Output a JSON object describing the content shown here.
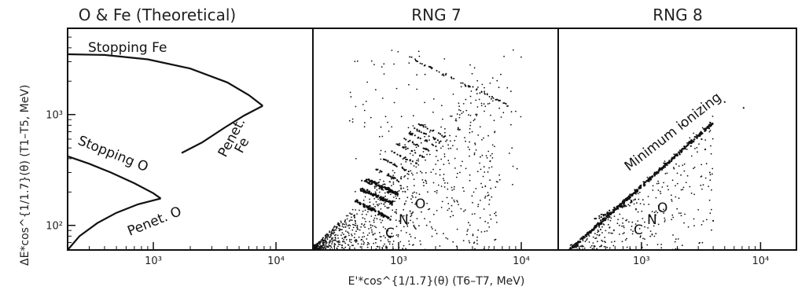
{
  "figure": {
    "xlabel": "E'*cos^{1/1.7}(θ) (T6–T7, MeV)",
    "ylabel": "ΔE*cos^{1/1.7}(θ) (T1–T5, MeV)"
  },
  "chart_data": [
    {
      "type": "line",
      "title": "O & Fe (Theoretical)",
      "xscale": "log",
      "yscale": "log",
      "xlim": [
        200,
        20000
      ],
      "ylim": [
        60,
        6000
      ],
      "xticks": [
        {
          "value": 1000,
          "label": "10³"
        },
        {
          "value": 10000,
          "label": "10⁴"
        }
      ],
      "yticks": [
        {
          "value": 100,
          "label": "10²"
        },
        {
          "value": 1000,
          "label": "10³"
        }
      ],
      "series": [
        {
          "name": "Stopping Fe",
          "x": [
            200,
            400,
            900,
            2000,
            4000,
            6000,
            7800
          ],
          "y": [
            3500,
            3450,
            3150,
            2600,
            1950,
            1500,
            1200
          ]
        },
        {
          "name": "Penet. Fe",
          "x": [
            1700,
            2500,
            3800,
            5500,
            7800
          ],
          "y": [
            450,
            560,
            760,
            980,
            1200
          ]
        },
        {
          "name": "Stopping O",
          "x": [
            200,
            300,
            450,
            700,
            1000,
            1150
          ],
          "y": [
            420,
            360,
            300,
            240,
            195,
            175
          ]
        },
        {
          "name": "Penet. O",
          "x": [
            200,
            250,
            350,
            500,
            750,
            1150
          ],
          "y": [
            60,
            80,
            105,
            130,
            155,
            175
          ]
        }
      ]
    },
    {
      "type": "scatter",
      "title": "RNG 7",
      "xscale": "log",
      "yscale": "log",
      "xlim": [
        200,
        20000
      ],
      "ylim": [
        60,
        6000
      ],
      "xticks": [
        {
          "value": 1000,
          "label": "10³"
        },
        {
          "value": 10000,
          "label": "10⁴"
        }
      ],
      "annotations": [
        "C",
        "N",
        "O"
      ],
      "series": [
        {
          "name": "C",
          "x": [
            450,
            550,
            650,
            750,
            850
          ],
          "y": [
            165,
            150,
            135,
            125,
            115
          ]
        },
        {
          "name": "N",
          "x": [
            500,
            600,
            700,
            800,
            900
          ],
          "y": [
            210,
            195,
            180,
            168,
            158
          ]
        },
        {
          "name": "O",
          "x": [
            550,
            650,
            750,
            850,
            1000
          ],
          "y": [
            260,
            240,
            220,
            205,
            190
          ]
        }
      ]
    },
    {
      "type": "scatter",
      "title": "RNG 8",
      "xscale": "log",
      "yscale": "log",
      "xlim": [
        200,
        20000
      ],
      "ylim": [
        60,
        6000
      ],
      "xticks": [
        {
          "value": 1000,
          "label": "10³"
        },
        {
          "value": 10000,
          "label": "10⁴"
        }
      ],
      "annotations": [
        "Minimum ionizing",
        "C",
        "N",
        "O"
      ],
      "series": [
        {
          "name": "Minimum ionizing",
          "x": [
            250,
            400,
            700,
            1200,
            2000,
            3000,
            4000
          ],
          "y": [
            60,
            100,
            170,
            290,
            450,
            650,
            850
          ]
        }
      ]
    }
  ]
}
